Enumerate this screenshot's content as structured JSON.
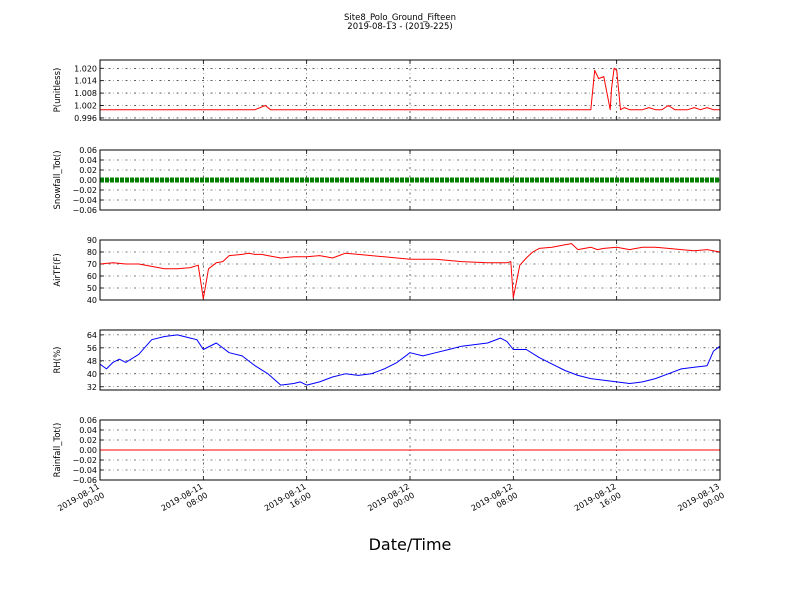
{
  "chart_data": {
    "type": "line",
    "title": "Site8_Polo_Ground_Fifteen",
    "subtitle": "2019-08-13 - (2019-225)",
    "xlabel": "Date/Time",
    "x_ticks": [
      {
        "line1": "2019-08-11",
        "line2": "00:00",
        "hours": 0
      },
      {
        "line1": "2019-08-11",
        "line2": "08:00",
        "hours": 8
      },
      {
        "line1": "2019-08-11",
        "line2": "16:00",
        "hours": 16
      },
      {
        "line1": "2019-08-12",
        "line2": "00:00",
        "hours": 24
      },
      {
        "line1": "2019-08-12",
        "line2": "08:00",
        "hours": 32
      },
      {
        "line1": "2019-08-12",
        "line2": "16:00",
        "hours": 40
      },
      {
        "line1": "2019-08-13",
        "line2": "00:00",
        "hours": 48
      }
    ],
    "x_range_hours": [
      0,
      48
    ],
    "grid": true,
    "panels": [
      {
        "ylabel": "P(unitless)",
        "ylim": [
          0.995,
          1.024
        ],
        "yticks": [
          "0.996",
          "1.002",
          "1.008",
          "1.014",
          "1.020"
        ],
        "ytick_values": [
          0.996,
          1.002,
          1.008,
          1.014,
          1.02
        ],
        "color": "#ff0000",
        "series": {
          "x": [
            0,
            12,
            12.8,
            13.2,
            14,
            20,
            30,
            38,
            38.3,
            38.6,
            39,
            39.5,
            39.6,
            39.8,
            40,
            40.3,
            40.6,
            41,
            41.5,
            42,
            42.5,
            43,
            43.5,
            44,
            44.5,
            45,
            45.5,
            46,
            46.5,
            47,
            47.5,
            48
          ],
          "y": [
            1.0,
            1.0,
            1.002,
            1.0,
            1.0,
            1.0,
            1.0,
            1.0,
            1.019,
            1.015,
            1.016,
            1.0,
            1.01,
            1.02,
            1.019,
            1.0,
            1.001,
            1.0,
            1.0,
            1.0,
            1.001,
            1.0,
            1.0,
            1.002,
            1.0,
            1.0,
            1.0,
            1.001,
            1.0,
            1.001,
            1.0,
            1.0
          ]
        }
      },
      {
        "ylabel": "Snowfall_Tot()",
        "ylim": [
          -0.06,
          0.06
        ],
        "yticks": [
          "0.06",
          "0.04",
          "0.02",
          "0.00",
          "−0.02",
          "−0.04",
          "−0.06"
        ],
        "ytick_values": [
          0.06,
          0.04,
          0.02,
          0.0,
          -0.02,
          -0.04,
          -0.06
        ],
        "color": "#007f00",
        "marker": "dot",
        "series": {
          "x": [
            0,
            48
          ],
          "y": [
            0,
            0
          ]
        }
      },
      {
        "ylabel": "AirTF(F)",
        "ylim": [
          40,
          90
        ],
        "yticks": [
          "90",
          "80",
          "70",
          "60",
          "50",
          "40"
        ],
        "ytick_values": [
          90,
          80,
          70,
          60,
          50,
          40
        ],
        "color": "#ff0000",
        "series": {
          "x": [
            0,
            1,
            2,
            3,
            4,
            5,
            6,
            7,
            7.6,
            7.8,
            8,
            8.4,
            9,
            9.5,
            10,
            11,
            11.5,
            12,
            12.5,
            13,
            14,
            15,
            16,
            17,
            17.5,
            18,
            19,
            20,
            22,
            24,
            26,
            28,
            30,
            31.5,
            31.8,
            32,
            32.5,
            33,
            33.5,
            34,
            35,
            36,
            36.5,
            37,
            38,
            38.5,
            39,
            40,
            41,
            42,
            43,
            44,
            45,
            46,
            47,
            48
          ],
          "y": [
            70,
            71,
            70,
            70,
            68,
            66,
            66,
            67,
            69,
            55,
            41,
            66,
            71,
            72,
            77,
            78,
            79,
            78,
            78,
            77,
            75,
            76,
            76,
            77,
            76,
            75,
            79,
            78,
            76,
            74,
            74,
            72,
            71,
            71,
            72,
            42,
            69,
            75,
            80,
            83,
            84,
            86,
            87,
            82,
            84,
            82,
            83,
            84,
            82,
            84,
            84,
            83,
            82,
            81,
            82,
            80
          ]
        }
      },
      {
        "ylabel": "RH(%)",
        "ylim": [
          30,
          67
        ],
        "yticks": [
          "64",
          "56",
          "48",
          "40",
          "32"
        ],
        "ytick_values": [
          64,
          56,
          48,
          40,
          32
        ],
        "color": "#0000ff",
        "series": {
          "x": [
            0,
            0.5,
            1,
            1.5,
            2,
            3,
            4,
            5,
            6,
            7,
            7.5,
            8,
            9,
            10,
            11,
            12,
            13,
            14,
            15,
            15.5,
            16,
            17,
            18,
            19,
            20,
            21,
            22,
            23,
            24,
            25,
            26,
            27,
            28,
            29,
            30,
            31,
            31.5,
            32,
            33,
            34,
            35,
            36,
            37,
            38,
            39,
            40,
            41,
            42,
            43,
            44,
            45,
            46,
            47,
            47.5,
            48
          ],
          "y": [
            46,
            43,
            47,
            49,
            47,
            52,
            61,
            63,
            64,
            62,
            61,
            55,
            59,
            53,
            51,
            45,
            40,
            33,
            34,
            35,
            33,
            35,
            38,
            40,
            39,
            40,
            43,
            47,
            53,
            51,
            53,
            55,
            57,
            58,
            59,
            62,
            60,
            55,
            55,
            50,
            46,
            42,
            39,
            37,
            36,
            35,
            34,
            35,
            37,
            40,
            43,
            44,
            45,
            54,
            57
          ]
        }
      },
      {
        "ylabel": "Rainfall_Tot()",
        "ylim": [
          -0.06,
          0.06
        ],
        "yticks": [
          "0.06",
          "0.04",
          "0.02",
          "0.00",
          "−0.02",
          "−0.04",
          "−0.06"
        ],
        "ytick_values": [
          0.06,
          0.04,
          0.02,
          0.0,
          -0.02,
          -0.04,
          -0.06
        ],
        "color": "#ff0000",
        "series": {
          "x": [
            0,
            48
          ],
          "y": [
            0,
            0
          ]
        }
      }
    ]
  }
}
